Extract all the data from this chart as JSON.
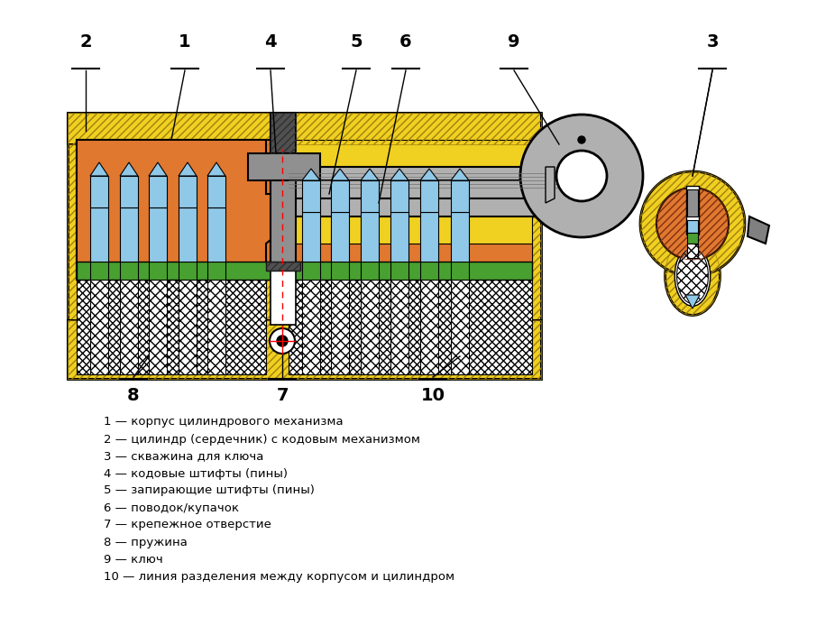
{
  "bg_color": "#ffffff",
  "gold": "#F0D020",
  "orange": "#E07830",
  "blue_light": "#90C8E8",
  "green": "#48A030",
  "gray_key": "#B0B0B0",
  "gray_med": "#808080",
  "gray_dark": "#505050",
  "gray_cam": "#909090",
  "black": "#000000",
  "red": "#FF0000",
  "white": "#ffffff",
  "legend_lines": [
    "1 — корпус цилиндрового механизма",
    "2 — цилиндр (сердечник) с кодовым механизмом",
    "3 — скважина для ключа",
    "4 — кодовые штифты (пины)",
    "5 — запирающие штифты (пины)",
    "6 — поводок/купачок",
    "7 — крепежное отверстие",
    "8 — пружина",
    "9 — ключ",
    "10 — линия разделения между корпусом и цилиндром"
  ]
}
